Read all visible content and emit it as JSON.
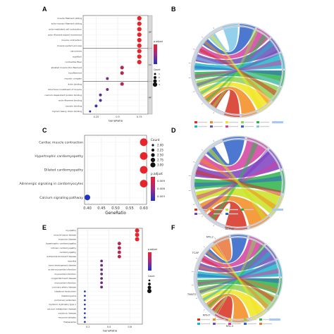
{
  "panels": {
    "A": "A",
    "B": "B",
    "C": "C",
    "D": "D",
    "E": "E",
    "F": "F"
  },
  "chart_data": [
    {
      "panel": "A",
      "type": "scatter",
      "xlabel": "GeneRatio",
      "xticks": [
        0.25,
        0.5,
        0.75
      ],
      "xlim": [
        0.1,
        0.85
      ],
      "facets": [
        "BP",
        "CC",
        "MF"
      ],
      "categories": [
        "muscle filament sliding",
        "actin-myosin filament sliding",
        "actin-mediated cell contraction",
        "actin filament-based movement",
        "muscle contraction",
        "muscle system process",
        "sarcomere",
        "myofibril",
        "contractile fiber",
        "striated muscle thin filament",
        "myofilament",
        "myosin complex",
        "actin binding",
        "structural constituent of muscle",
        "calcium-dependent protein binding",
        "actin filament binding",
        "myosin binding",
        "myosin heavy chain binding"
      ],
      "facet_of": [
        "BP",
        "BP",
        "BP",
        "BP",
        "BP",
        "BP",
        "CC",
        "CC",
        "CC",
        "CC",
        "CC",
        "CC",
        "MF",
        "MF",
        "MF",
        "MF",
        "MF",
        "MF"
      ],
      "values": [
        0.75,
        0.75,
        0.75,
        0.75,
        0.75,
        0.75,
        0.75,
        0.75,
        0.75,
        0.55,
        0.55,
        0.38,
        0.55,
        0.38,
        0.3,
        0.3,
        0.25,
        0.18
      ],
      "sizes": [
        4,
        4,
        4,
        4,
        4,
        4,
        4,
        4,
        4,
        3,
        3,
        2,
        3,
        2,
        2,
        2,
        2,
        1
      ],
      "color_legend": "p.adjust",
      "size_legend": "Count",
      "size_legend_values": [
        "1",
        "2",
        "3",
        "4"
      ]
    },
    {
      "panel": "C",
      "type": "scatter",
      "xlabel": "GeneRatio",
      "xticks": [
        "0.40",
        "0.45",
        "0.50",
        "0.55",
        "0.60"
      ],
      "xlim": [
        0.39,
        0.61
      ],
      "categories": [
        "Cardiac muscle contraction",
        "Hypertrophic cardiomyopathy",
        "Dilated cardiomyopathy",
        "Adrenergic signaling in cardiomyocytes",
        "Calcium signaling pathway"
      ],
      "values": [
        0.6,
        0.6,
        0.6,
        0.6,
        0.4
      ],
      "sizes": [
        3,
        3,
        3,
        3,
        2
      ],
      "color_legend": "p.adjust",
      "color_legend_ticks": [
        "0.009",
        "0.006",
        "0.003"
      ],
      "size_legend": "Count",
      "size_legend_values": [
        "2.00",
        "2.25",
        "2.50",
        "2.75",
        "3.00"
      ]
    },
    {
      "panel": "E",
      "type": "scatter",
      "xlabel": "GeneRatio",
      "xticks": [
        0.2,
        0.4,
        0.6
      ],
      "xlim": [
        0.1,
        0.72
      ],
      "categories": [
        "myopathy",
        "muscle tissue disease",
        "muscular disease",
        "hypertrophic cardiomyopathy",
        "intrinsic cardiomyopathy",
        "cardiomyopathy",
        "autosomal dominant disease",
        "myositis",
        "bone development disease",
        "acute myocardial infarction",
        "myocardial infarction",
        "congenital heart disease",
        "myocardial infarction",
        "coronary artery disease",
        "intestinal obstruction",
        "rhabdomyoma",
        "pulmonary embolism",
        "myotonic dystrophy type 1",
        "calcium metabolism disease",
        "myotonic disease",
        "muscular atrophy",
        "thalassemia"
      ],
      "values": [
        0.67,
        0.67,
        0.67,
        0.5,
        0.5,
        0.5,
        0.5,
        0.33,
        0.33,
        0.33,
        0.33,
        0.33,
        0.33,
        0.33,
        0.17,
        0.17,
        0.17,
        0.17,
        0.17,
        0.17,
        0.17,
        0.17
      ],
      "sizes": [
        4,
        4,
        4,
        3,
        3,
        3,
        3,
        2,
        2,
        2,
        2,
        2,
        2,
        2,
        1,
        1,
        1,
        1,
        1,
        1,
        1,
        1
      ],
      "color_legend": "p.adjust",
      "size_legend": "Count"
    },
    {
      "panel": "B",
      "type": "chord",
      "colors": [
        "#d6301f",
        "#f58b1f",
        "#f2e51f",
        "#8fd14f",
        "#2bb34b",
        "#1fb5c9",
        "#6a4fb8",
        "#d43fa0",
        "#2d62c7",
        "#7fc8e8"
      ]
    },
    {
      "panel": "D",
      "type": "chord",
      "colors": [
        "#d6301f",
        "#f58b1f",
        "#c9e21f",
        "#2bb34b",
        "#7b3fbf",
        "#d43fa0",
        "#2d62c7"
      ]
    },
    {
      "panel": "F",
      "type": "chord",
      "side_labels": [
        "ACTN2",
        "MYL2",
        "TCAP",
        "TNNT2",
        "MYH7",
        "MYL3"
      ],
      "colors": [
        "#d6301f",
        "#f58b1f",
        "#f2e51f",
        "#8fd14f",
        "#2bb34b",
        "#1fb5c9",
        "#6a4fb8",
        "#d43fa0",
        "#2d62c7",
        "#e8763a"
      ]
    }
  ],
  "palette": {
    "dot_high": "#e8242b",
    "dot_low": "#2233bb",
    "facet_strip": "#d9d9d9",
    "ring": "#cfd6e0"
  }
}
